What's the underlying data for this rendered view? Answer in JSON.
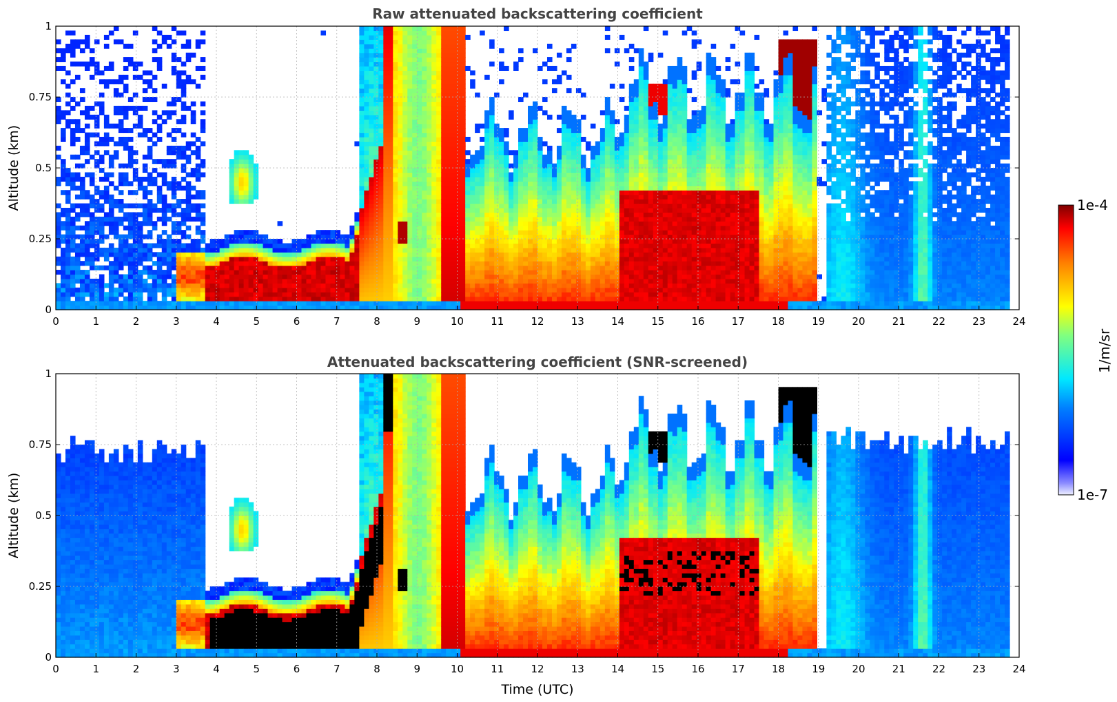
{
  "chart_data": [
    {
      "type": "heatmap",
      "title": "Raw attenuated backscattering coefficient",
      "xlabel": "",
      "ylabel": "Altitude (km)",
      "xlim": [
        0,
        24
      ],
      "ylim": [
        0,
        1
      ],
      "x_ticks": [
        "0",
        "1",
        "2",
        "3",
        "4",
        "5",
        "6",
        "7",
        "8",
        "9",
        "10",
        "11",
        "12",
        "13",
        "14",
        "15",
        "16",
        "17",
        "18",
        "19",
        "20",
        "21",
        "22",
        "23",
        "24"
      ],
      "y_ticks": [
        "0",
        "0.25",
        "0.5",
        "0.75",
        "1"
      ],
      "grid": true,
      "screened": false
    },
    {
      "type": "heatmap",
      "title": "Attenuated backscattering coefficient (SNR-screened)",
      "xlabel": "Time (UTC)",
      "ylabel": "Altitude (km)",
      "xlim": [
        0,
        24
      ],
      "ylim": [
        0,
        1
      ],
      "x_ticks": [
        "0",
        "1",
        "2",
        "3",
        "4",
        "5",
        "6",
        "7",
        "8",
        "9",
        "10",
        "11",
        "12",
        "13",
        "14",
        "15",
        "16",
        "17",
        "18",
        "19",
        "20",
        "21",
        "22",
        "23",
        "24"
      ],
      "y_ticks": [
        "0",
        "0.25",
        "0.5",
        "0.75",
        "1"
      ],
      "grid": true,
      "screened": true
    }
  ],
  "colorbar": {
    "label": "1/m/sr",
    "max_label": "1e-4",
    "min_label": "1e-7",
    "colormap": "jet",
    "scale": "log"
  }
}
